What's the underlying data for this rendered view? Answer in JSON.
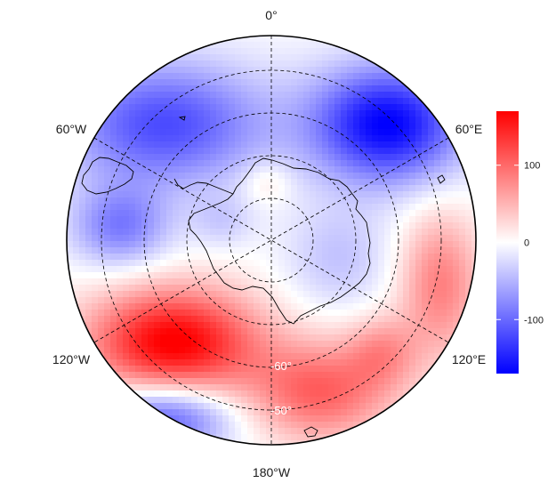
{
  "map": {
    "projection": "south-polar-stereographic",
    "longitude_labels": {
      "top": "0°",
      "upper_left": "60°W",
      "upper_right": "60°E",
      "lower_left": "120°W",
      "lower_right": "120°E",
      "bottom": "180°W"
    },
    "latitude_labels": [
      "-60°",
      "-50°"
    ],
    "colorbar": {
      "min": -170,
      "max": 170,
      "ticks": [
        {
          "value": 100,
          "label": "100"
        },
        {
          "value": 0,
          "label": "0"
        },
        {
          "value": -100,
          "label": "-100"
        }
      ],
      "colors": {
        "low": "#0000ff",
        "mid": "#ffffff",
        "high": "#ff0000"
      }
    },
    "colors": {
      "background": "#ffffff",
      "outline": "#000000",
      "graticule": "#000000"
    }
  }
}
